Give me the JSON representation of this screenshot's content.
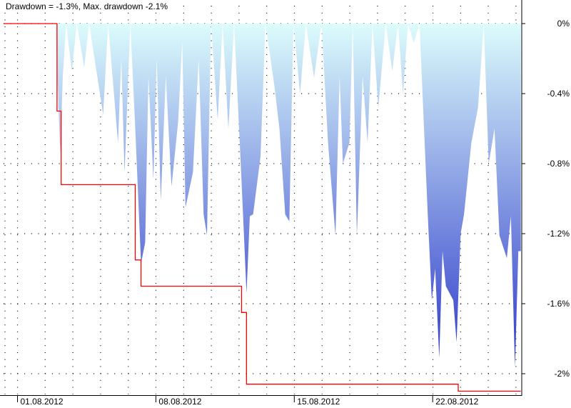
{
  "title": "Drawdown = -1.3%, Max. drawdown -2.1%",
  "chart_data": {
    "type": "area",
    "title": "Drawdown = -1.3%, Max. drawdown -2.1%",
    "xlabel": "",
    "ylabel": "",
    "x_tick_labels": [
      "01.08.2012",
      "08.08.2012",
      "15.08.2012",
      "22.08.2012"
    ],
    "x_ticks": [
      "2012-08-01 00:00",
      "2012-08-08 00:00",
      "2012-08-15 00:00",
      "2012-08-22 00:00"
    ],
    "xlim": [
      "2012-07-31 07:00",
      "2012-08-26 11:00"
    ],
    "y_tick_labels": [
      "0%",
      "-0.4%",
      "-0.8%",
      "-1.2%",
      "-1.6%",
      "-2%"
    ],
    "y_ticks": [
      0,
      -0.4,
      -0.8,
      -1.2,
      -1.6,
      -2.0
    ],
    "ylim": [
      -2.1,
      0.13
    ],
    "y_axis_side": "right",
    "grid": true,
    "colors": {
      "drawdown_top": "#dcfcfc",
      "drawdown_bottom": "#2b35c8",
      "max_drawdown": "#ff0000"
    },
    "series": [
      {
        "type": "area",
        "points": [
          [
            "2012-07-31 07:00",
            0
          ],
          [
            "2012-08-02 22:00",
            0
          ],
          [
            "2012-08-03 04:00",
            -0.74
          ],
          [
            "2012-08-03 07:00",
            -0.3
          ],
          [
            "2012-08-03 11:00",
            0
          ],
          [
            "2012-08-03 18:00",
            -0.27
          ],
          [
            "2012-08-04 00:00",
            0
          ],
          [
            "2012-08-04 09:00",
            -0.25
          ],
          [
            "2012-08-04 15:00",
            0
          ],
          [
            "2012-08-05 08:00",
            -0.52
          ],
          [
            "2012-08-05 14:00",
            0
          ],
          [
            "2012-08-06 02:00",
            -0.68
          ],
          [
            "2012-08-06 06:00",
            -0.2
          ],
          [
            "2012-08-06 10:00",
            -0.85
          ],
          [
            "2012-08-06 17:00",
            0
          ],
          [
            "2012-08-06 23:00",
            -0.6
          ],
          [
            "2012-08-07 06:00",
            -1.37
          ],
          [
            "2012-08-07 11:00",
            -1.25
          ],
          [
            "2012-08-07 15:00",
            -0.3
          ],
          [
            "2012-08-07 21:00",
            -0.89
          ],
          [
            "2012-08-08 01:00",
            -0.2
          ],
          [
            "2012-08-08 06:00",
            -1.01
          ],
          [
            "2012-08-08 12:00",
            -0.3
          ],
          [
            "2012-08-08 19:00",
            -0.93
          ],
          [
            "2012-08-09 03:00",
            -0.56
          ],
          [
            "2012-08-09 08:00",
            -0.1
          ],
          [
            "2012-08-09 12:00",
            -1.05
          ],
          [
            "2012-08-09 21:00",
            -0.85
          ],
          [
            "2012-08-10 04:00",
            -0.2
          ],
          [
            "2012-08-10 10:00",
            -1.09
          ],
          [
            "2012-08-10 14:00",
            -1.21
          ],
          [
            "2012-08-10 19:00",
            0
          ],
          [
            "2012-08-11 03:00",
            -0.55
          ],
          [
            "2012-08-11 09:00",
            0
          ],
          [
            "2012-08-11 16:00",
            -0.6
          ],
          [
            "2012-08-11 23:00",
            0
          ],
          [
            "2012-08-12 08:00",
            -0.9
          ],
          [
            "2012-08-12 14:00",
            -1.54
          ],
          [
            "2012-08-12 18:00",
            -1.1
          ],
          [
            "2012-08-12 22:00",
            -1.09
          ],
          [
            "2012-08-13 07:00",
            -0.76
          ],
          [
            "2012-08-13 13:00",
            0
          ],
          [
            "2012-08-14 00:00",
            -0.36
          ],
          [
            "2012-08-14 06:00",
            -0.6
          ],
          [
            "2012-08-14 13:00",
            -1.09
          ],
          [
            "2012-08-14 18:00",
            -1.13
          ],
          [
            "2012-08-14 23:00",
            0
          ],
          [
            "2012-08-15 07:00",
            -0.4
          ],
          [
            "2012-08-15 14:00",
            0
          ],
          [
            "2012-08-16 00:00",
            -0.31
          ],
          [
            "2012-08-16 09:00",
            0
          ],
          [
            "2012-08-16 17:00",
            -0.68
          ],
          [
            "2012-08-17 02:00",
            -1.21
          ],
          [
            "2012-08-17 07:00",
            -0.3
          ],
          [
            "2012-08-17 11:00",
            -0.8
          ],
          [
            "2012-08-17 19:00",
            -0.68
          ],
          [
            "2012-08-17 23:00",
            0
          ],
          [
            "2012-08-18 04:00",
            -1.21
          ],
          [
            "2012-08-18 11:00",
            -0.3
          ],
          [
            "2012-08-18 17:00",
            -0.68
          ],
          [
            "2012-08-18 23:00",
            0
          ],
          [
            "2012-08-19 06:00",
            -0.48
          ],
          [
            "2012-08-19 15:00",
            0
          ],
          [
            "2012-08-19 23:00",
            -0.27
          ],
          [
            "2012-08-20 06:00",
            0
          ],
          [
            "2012-08-20 12:00",
            -0.4
          ],
          [
            "2012-08-20 18:00",
            0
          ],
          [
            "2012-08-21 01:00",
            -0.11
          ],
          [
            "2012-08-21 08:00",
            0
          ],
          [
            "2012-08-21 18:00",
            -1.09
          ],
          [
            "2012-08-21 23:00",
            -1.58
          ],
          [
            "2012-08-22 03:00",
            -1.4
          ],
          [
            "2012-08-22 08:00",
            -1.91
          ],
          [
            "2012-08-22 12:00",
            -1.3
          ],
          [
            "2012-08-22 16:00",
            -1.5
          ],
          [
            "2012-08-23 01:00",
            -1.58
          ],
          [
            "2012-08-23 05:00",
            -1.82
          ],
          [
            "2012-08-23 10:00",
            -1.2
          ],
          [
            "2012-08-23 14:00",
            -1.09
          ],
          [
            "2012-08-23 23:00",
            -0.68
          ],
          [
            "2012-08-24 07:00",
            -0.48
          ],
          [
            "2012-08-24 14:00",
            0
          ],
          [
            "2012-08-24 20:00",
            -0.8
          ],
          [
            "2012-08-25 03:00",
            -0.6
          ],
          [
            "2012-08-25 09:00",
            -1.21
          ],
          [
            "2012-08-25 18:00",
            -1.34
          ],
          [
            "2012-08-25 23:00",
            -1.1
          ],
          [
            "2012-08-26 03:00",
            -1.82
          ],
          [
            "2012-08-26 04:00",
            -1.96
          ],
          [
            "2012-08-26 08:00",
            -1.3
          ],
          [
            "2012-08-26 11:00",
            -1.3
          ]
        ]
      },
      {
        "type": "step",
        "points": [
          [
            "2012-07-31 07:00",
            0
          ],
          [
            "2012-08-03 00:00",
            -0.5
          ],
          [
            "2012-08-03 05:00",
            -0.92
          ],
          [
            "2012-08-06 23:00",
            -1.35
          ],
          [
            "2012-08-07 06:00",
            -1.5
          ],
          [
            "2012-08-12 08:00",
            -1.65
          ],
          [
            "2012-08-12 14:00",
            -2.06
          ],
          [
            "2012-08-23 07:00",
            -2.1
          ],
          [
            "2012-08-26 11:00",
            -2.1
          ]
        ]
      }
    ]
  }
}
